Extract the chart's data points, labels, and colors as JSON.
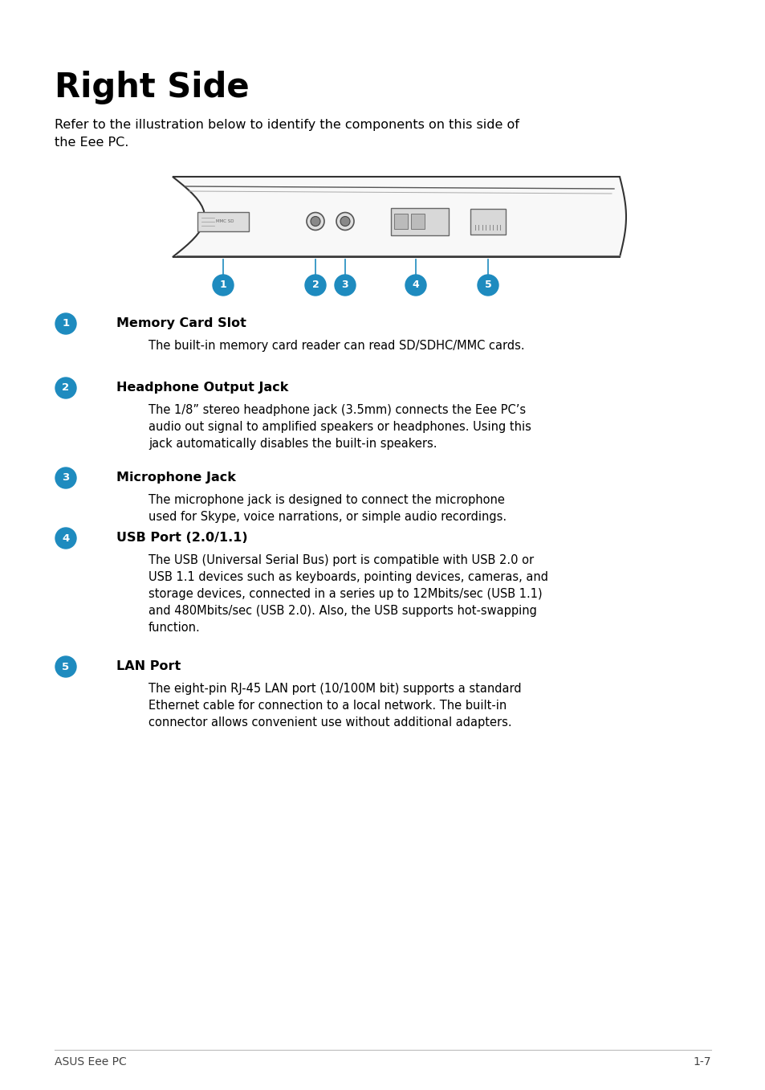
{
  "title": "Right Side",
  "subtitle_line1": "Refer to the illustration below to identify the components on this side of",
  "subtitle_line2": "the Eee PC.",
  "bg_color": "#ffffff",
  "title_color": "#000000",
  "text_color": "#1a1a1a",
  "blue_color": "#1e8bbf",
  "footer_left": "ASUS Eee PC",
  "footer_right": "1-7",
  "items": [
    {
      "num": "1",
      "title": "Memory Card Slot",
      "body": "The built-in memory card reader can read SD/SDHC/MMC cards."
    },
    {
      "num": "2",
      "title": "Headphone Output Jack",
      "body": "The 1/8” stereo headphone jack (3.5mm) connects the Eee PC’s\naudio out signal to amplified speakers or headphones. Using this\njack automatically disables the built-in speakers."
    },
    {
      "num": "3",
      "title": "Microphone Jack",
      "body": "The microphone jack is designed to connect the microphone\nused for Skype, voice narrations, or simple audio recordings."
    },
    {
      "num": "4",
      "title": "USB Port (2.0/1.1)",
      "body": "The USB (Universal Serial Bus) port is compatible with USB 2.0 or\nUSB 1.1 devices such as keyboards, pointing devices, cameras, and\nstorage devices, connected in a series up to 12Mbits/sec (USB 1.1)\nand 480Mbits/sec (USB 2.0). Also, the USB supports hot-swapping\nfunction."
    },
    {
      "num": "5",
      "title": "LAN Port",
      "body": "The eight-pin RJ-45 LAN port (10/100M bit) supports a standard\nEthernet cable for connection to a local network. The built-in\nconnector allows convenient use without additional adapters."
    }
  ]
}
